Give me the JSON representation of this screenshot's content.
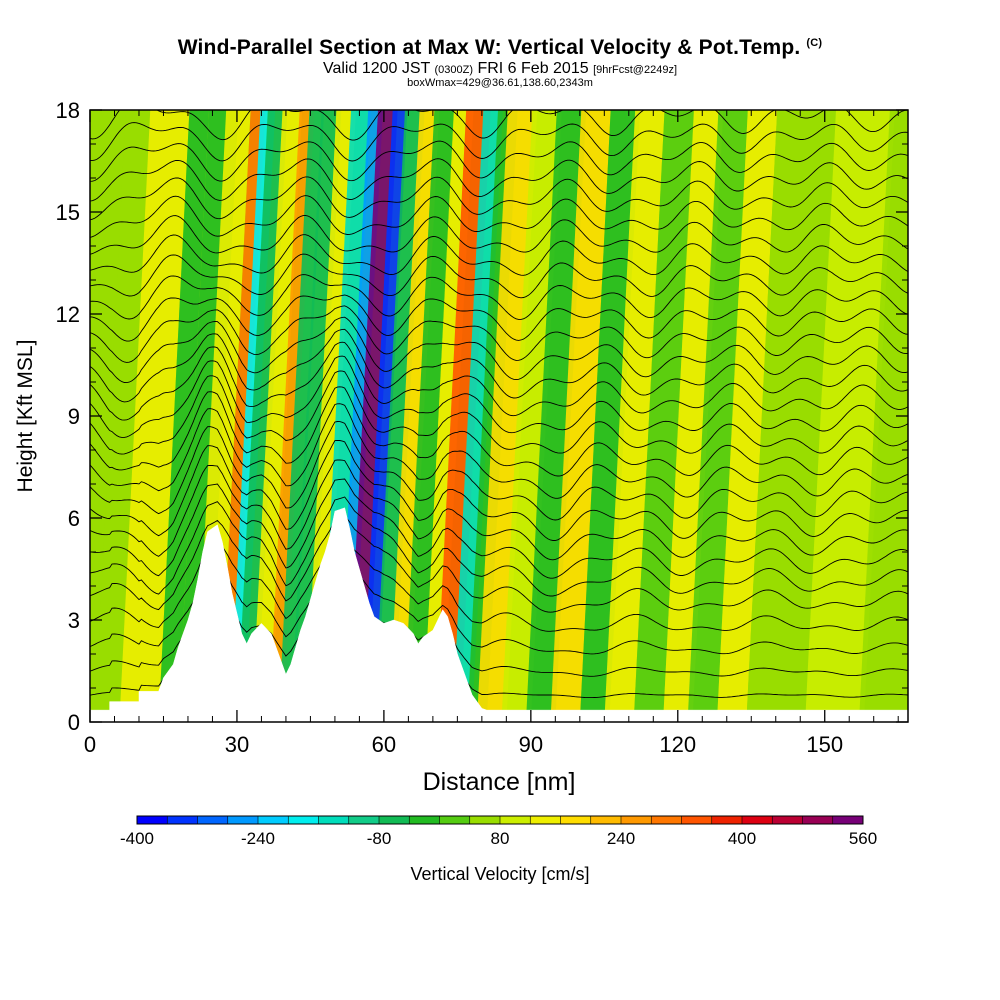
{
  "title": {
    "main": "Wind-Parallel Section at Max W: Vertical Velocity & Pot.Temp.",
    "mark": "(C)",
    "valid_prefix": "Valid 1200 JST",
    "valid_utc": "(0300Z)",
    "valid_date": "FRI 6 Feb 2015",
    "forecast": "[9hrFcst@2249z]",
    "boxwmax": "boxWmax=429@36.61,138.60,2343m"
  },
  "chart_data": {
    "type": "heatmap",
    "xlabel": "Distance [nm]",
    "ylabel": "Height [Kft MSL]",
    "xlim": [
      0,
      167
    ],
    "ylim": [
      0,
      18
    ],
    "x_ticks": [
      0,
      30,
      60,
      90,
      120,
      150
    ],
    "y_ticks": [
      0,
      3,
      6,
      9,
      12,
      15,
      18
    ],
    "colorbar": {
      "label": "Vertical Velocity [cm/s]",
      "min": -400,
      "max": 560,
      "step": 40,
      "ticks": [
        -400,
        -240,
        -80,
        80,
        240,
        400,
        560
      ],
      "colors": [
        "#0000ff",
        "#0033ff",
        "#0066ff",
        "#0099ff",
        "#00ccff",
        "#00eeee",
        "#00ddbb",
        "#11cc88",
        "#11bb55",
        "#22bb22",
        "#55cc11",
        "#99dd00",
        "#ccee00",
        "#eeee00",
        "#ffdd00",
        "#ffbb00",
        "#ff9900",
        "#ff7700",
        "#ff5500",
        "#ee2200",
        "#dd0011",
        "#bb0033",
        "#990055",
        "#770077"
      ]
    },
    "w_contour_field": {
      "background": 60,
      "bands": [
        {
          "x": 5,
          "half_width": 4,
          "w": 40
        },
        {
          "x": 10,
          "half_width": 4,
          "w": 120
        },
        {
          "x": 16,
          "half_width": 2,
          "w": -20
        },
        {
          "x": 21,
          "half_width": 3,
          "w": -40
        },
        {
          "x": 24,
          "half_width": 2.5,
          "w": 150
        },
        {
          "x": 28,
          "half_width": 1.5,
          "w": 280
        },
        {
          "x": 30,
          "half_width": 1.5,
          "w": -200
        },
        {
          "x": 32,
          "half_width": 2,
          "w": -60
        },
        {
          "x": 35,
          "half_width": 2,
          "w": 150
        },
        {
          "x": 38,
          "half_width": 1.5,
          "w": 240
        },
        {
          "x": 40,
          "half_width": 1.5,
          "w": -80
        },
        {
          "x": 43,
          "half_width": 2,
          "w": -60
        },
        {
          "x": 46,
          "half_width": 2,
          "w": 120
        },
        {
          "x": 49,
          "half_width": 2,
          "w": -160
        },
        {
          "x": 52,
          "half_width": 1.5,
          "w": -280
        },
        {
          "x": 54.5,
          "half_width": 2,
          "w": 560
        },
        {
          "x": 57,
          "half_width": 1.5,
          "w": -340
        },
        {
          "x": 60,
          "half_width": 2,
          "w": -60
        },
        {
          "x": 63,
          "half_width": 2,
          "w": 160
        },
        {
          "x": 66,
          "half_width": 2,
          "w": -40
        },
        {
          "x": 70,
          "half_width": 2,
          "w": 120
        },
        {
          "x": 73,
          "half_width": 2.5,
          "w": 320
        },
        {
          "x": 76,
          "half_width": 2,
          "w": -160
        },
        {
          "x": 79,
          "half_width": 2,
          "w": -40
        },
        {
          "x": 82,
          "half_width": 3,
          "w": 160
        },
        {
          "x": 87,
          "half_width": 3,
          "w": 100
        },
        {
          "x": 92,
          "half_width": 3,
          "w": -20
        },
        {
          "x": 97,
          "half_width": 3,
          "w": 160
        },
        {
          "x": 103,
          "half_width": 3,
          "w": -20
        },
        {
          "x": 108,
          "half_width": 3,
          "w": 120
        },
        {
          "x": 114,
          "half_width": 3,
          "w": 0
        },
        {
          "x": 120,
          "half_width": 3,
          "w": 120
        },
        {
          "x": 125,
          "half_width": 3,
          "w": 0
        },
        {
          "x": 131,
          "half_width": 3,
          "w": 120
        },
        {
          "x": 140,
          "half_width": 6,
          "w": 40
        },
        {
          "x": 152,
          "half_width": 6,
          "w": 80
        },
        {
          "x": 162,
          "half_width": 5,
          "w": 60
        }
      ]
    },
    "terrain_kft": [
      [
        0,
        0.35
      ],
      [
        4,
        0.35
      ],
      [
        4,
        0.6
      ],
      [
        10,
        0.6
      ],
      [
        10,
        0.9
      ],
      [
        14,
        0.9
      ],
      [
        15,
        1.3
      ],
      [
        17,
        1.7
      ],
      [
        18,
        2.2
      ],
      [
        19,
        2.6
      ],
      [
        20,
        3.0
      ],
      [
        21,
        3.5
      ],
      [
        22,
        4.2
      ],
      [
        23,
        5.0
      ],
      [
        24,
        5.6
      ],
      [
        26,
        5.8
      ],
      [
        27,
        5.3
      ],
      [
        28,
        4.6
      ],
      [
        29,
        3.8
      ],
      [
        30,
        3.2
      ],
      [
        31,
        2.6
      ],
      [
        32,
        2.3
      ],
      [
        33,
        2.6
      ],
      [
        35,
        2.9
      ],
      [
        37,
        2.6
      ],
      [
        38,
        2.2
      ],
      [
        39,
        1.8
      ],
      [
        40,
        1.4
      ],
      [
        41,
        1.7
      ],
      [
        42,
        2.2
      ],
      [
        43,
        2.7
      ],
      [
        44,
        3.1
      ],
      [
        45,
        3.6
      ],
      [
        46,
        4.1
      ],
      [
        47,
        4.6
      ],
      [
        48,
        5.0
      ],
      [
        49,
        5.5
      ],
      [
        50,
        6.2
      ],
      [
        52,
        6.3
      ],
      [
        53,
        5.7
      ],
      [
        54,
        5.0
      ],
      [
        55,
        4.5
      ],
      [
        56,
        4.0
      ],
      [
        57,
        3.5
      ],
      [
        58,
        3.1
      ],
      [
        59,
        3.0
      ],
      [
        60,
        2.9
      ],
      [
        62,
        3.0
      ],
      [
        64,
        2.9
      ],
      [
        66,
        2.6
      ],
      [
        67,
        2.3
      ],
      [
        68,
        2.5
      ],
      [
        70,
        2.7
      ],
      [
        71,
        3.0
      ],
      [
        72,
        3.3
      ],
      [
        73,
        3.1
      ],
      [
        74,
        2.6
      ],
      [
        75,
        2.0
      ],
      [
        76,
        1.6
      ],
      [
        77,
        1.2
      ],
      [
        78,
        0.8
      ],
      [
        79,
        0.6
      ],
      [
        80,
        0.4
      ],
      [
        81,
        0.35
      ],
      [
        167,
        0.35
      ]
    ],
    "theta_contour_base_kft": [
      0.6,
      1.3,
      2.0,
      2.7,
      3.4,
      4.0,
      4.6,
      5.2,
      5.8,
      6.4,
      7.0,
      7.6,
      8.2,
      8.8,
      9.4,
      10.0,
      10.6,
      11.2,
      11.8,
      12.4,
      13.0,
      13.6,
      14.2,
      14.8,
      15.4,
      16.0,
      16.6,
      17.2,
      17.8
    ]
  }
}
